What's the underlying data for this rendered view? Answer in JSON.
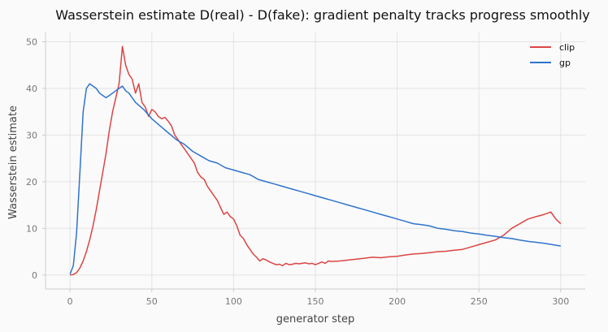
{
  "chart_data": {
    "type": "line",
    "title": "Wasserstein estimate D(real) - D(fake): gradient penalty tracks progress smoothly",
    "xlabel": "generator step",
    "ylabel": "Wasserstein estimate",
    "xlim": [
      -15,
      315
    ],
    "ylim": [
      -3,
      52
    ],
    "xticks": [
      0,
      50,
      100,
      150,
      200,
      250,
      300
    ],
    "yticks": [
      0,
      10,
      20,
      30,
      40,
      50
    ],
    "grid": true,
    "legend": "top-right",
    "colors": {
      "clip": "#dd4444",
      "gp": "#2f74cc",
      "grid": "#e3e3e3",
      "spine": "#cccccc"
    },
    "series": [
      {
        "name": "clip",
        "x": [
          0,
          2,
          4,
          6,
          8,
          10,
          12,
          14,
          16,
          18,
          20,
          22,
          24,
          26,
          28,
          30,
          32,
          34,
          36,
          38,
          40,
          42,
          44,
          46,
          48,
          50,
          52,
          54,
          56,
          58,
          60,
          62,
          64,
          66,
          68,
          70,
          72,
          74,
          76,
          78,
          80,
          82,
          84,
          86,
          88,
          90,
          92,
          94,
          96,
          98,
          100,
          102,
          104,
          106,
          108,
          110,
          112,
          114,
          116,
          118,
          120,
          122,
          124,
          126,
          128,
          130,
          132,
          134,
          136,
          138,
          140,
          142,
          144,
          146,
          148,
          150,
          152,
          154,
          156,
          158,
          160,
          165,
          170,
          175,
          180,
          185,
          190,
          195,
          200,
          205,
          210,
          215,
          220,
          225,
          230,
          235,
          240,
          245,
          250,
          255,
          260,
          265,
          270,
          275,
          280,
          285,
          290,
          294,
          297,
          300
        ],
        "values": [
          0,
          0.1,
          0.5,
          1.5,
          3,
          5,
          7.5,
          10.5,
          14,
          18,
          22,
          26,
          31,
          35,
          38,
          41,
          49,
          45,
          43,
          42,
          39,
          41,
          37,
          36,
          34,
          35.5,
          35,
          34,
          33.5,
          33.8,
          33,
          32,
          30,
          29,
          28,
          27,
          26,
          25,
          24,
          22,
          21,
          20.5,
          19,
          18,
          17,
          16,
          14.5,
          13,
          13.5,
          12.5,
          12,
          10.5,
          8.5,
          7.8,
          6.5,
          5.5,
          4.5,
          3.8,
          3,
          3.5,
          3.2,
          2.8,
          2.5,
          2.2,
          2.3,
          2,
          2.5,
          2.2,
          2.3,
          2.5,
          2.4,
          2.5,
          2.6,
          2.4,
          2.5,
          2.2,
          2.5,
          2.8,
          2.5,
          3,
          2.9,
          3,
          3.2,
          3.4,
          3.6,
          3.8,
          3.7,
          3.9,
          4,
          4.3,
          4.5,
          4.6,
          4.8,
          5,
          5.1,
          5.3,
          5.5,
          6,
          6.5,
          7,
          7.5,
          8.5,
          10,
          11,
          12,
          12.5,
          13,
          13.5,
          12,
          11
        ]
      },
      {
        "name": "gp",
        "x": [
          0,
          2,
          4,
          6,
          8,
          10,
          12,
          14,
          16,
          18,
          20,
          22,
          24,
          26,
          28,
          30,
          32,
          34,
          36,
          38,
          40,
          45,
          50,
          55,
          60,
          65,
          70,
          75,
          80,
          85,
          90,
          95,
          100,
          105,
          110,
          115,
          120,
          125,
          130,
          135,
          140,
          145,
          150,
          155,
          160,
          165,
          170,
          175,
          180,
          185,
          190,
          195,
          200,
          205,
          210,
          215,
          220,
          225,
          230,
          235,
          240,
          245,
          250,
          255,
          260,
          265,
          270,
          275,
          280,
          285,
          290,
          295,
          300
        ],
        "values": [
          0.2,
          2,
          9,
          22,
          35,
          40,
          41,
          40.5,
          40,
          39,
          38.5,
          38,
          38.5,
          39,
          39.5,
          40,
          40.5,
          39.5,
          39,
          38,
          37,
          35.5,
          33.5,
          32,
          30.5,
          29,
          28,
          26.5,
          25.5,
          24.5,
          24,
          23,
          22.5,
          22,
          21.5,
          20.5,
          20,
          19.5,
          19,
          18.5,
          18,
          17.5,
          17,
          16.5,
          16,
          15.5,
          15,
          14.5,
          14,
          13.5,
          13,
          12.5,
          12,
          11.5,
          11,
          10.8,
          10.5,
          10,
          9.8,
          9.5,
          9.3,
          9,
          8.8,
          8.5,
          8.3,
          8,
          7.8,
          7.5,
          7.2,
          7,
          6.8,
          6.5,
          6.2
        ]
      }
    ]
  }
}
